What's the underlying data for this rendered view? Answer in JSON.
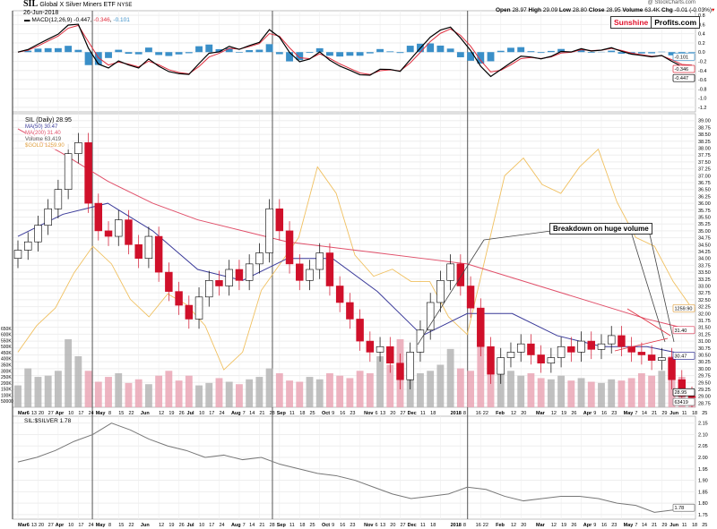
{
  "header": {
    "symbol": "SIL",
    "name": "Global X Silver Miners ETF",
    "exchange": "NYSE",
    "date": "26-Jun-2018",
    "credit": "@ StockCharts.com",
    "open_label": "Open",
    "open": "28.97",
    "high_label": "High",
    "high": "29.09",
    "low_label": "Low",
    "low": "28.80",
    "close_label": "Close",
    "close": "28.95",
    "volume_label": "Volume",
    "volume": "63.4K",
    "chg_label": "Chg",
    "chg": "-0.01 (-0.03%)"
  },
  "logo": {
    "part1": "Sunshine",
    "part2": "Profits.com"
  },
  "annotation": "Breakdown on huge volume",
  "colors": {
    "price": "#000000",
    "ma50": "#3b3b9a",
    "ma200": "#e0506a",
    "gold": "#f0c060",
    "volume": "#e8a0b0",
    "volume_down": "#b0b0b0",
    "macd": "#000000",
    "signal": "#e03040",
    "hist": "#3a8fc8",
    "ratio": "#777777"
  },
  "chart_data": [
    {
      "type": "line",
      "panel": "macd",
      "legend": {
        "macd": "MACD(12,26,9)",
        "macd_value": "-0.447",
        "signal_value": "-0.346",
        "hist_value": "-0.101"
      },
      "ylim": [
        -1.3,
        0.9
      ],
      "yticks": [
        "0.8",
        "0.6",
        "0.4",
        "0.2",
        "0.0",
        "-0.2",
        "-0.4",
        "-0.6",
        "-0.8",
        "-1.0",
        "-1.2"
      ],
      "ytick_values": [
        0.8,
        0.6,
        0.4,
        0.2,
        0,
        -0.2,
        -0.4,
        -0.6,
        -0.8,
        -1.0,
        -1.2
      ]
    },
    {
      "type": "candlestick",
      "panel": "price",
      "legend": {
        "price": "SIL (Daily) 28.95",
        "ma50": "MA(50) 30.47",
        "ma200": "MA(200) 31.40",
        "volume": "Volume 63,419",
        "gold": "$GOLD 1259.90"
      },
      "right_labels": {
        "ma50": "30.47",
        "ma200": "31.40",
        "gold": "1259.90",
        "close": "28.95",
        "volume": "63419"
      },
      "ylim": [
        28.6,
        39.25
      ],
      "yticks": [
        "39.00",
        "38.75",
        "38.50",
        "38.25",
        "38.00",
        "37.75",
        "37.50",
        "37.25",
        "37.00",
        "36.75",
        "36.50",
        "36.25",
        "36.00",
        "35.75",
        "35.50",
        "35.25",
        "35.00",
        "34.75",
        "34.50",
        "34.25",
        "34.00",
        "33.75",
        "33.50",
        "33.25",
        "33.00",
        "32.75",
        "32.50",
        "32.25",
        "32.00",
        "31.75",
        "31.50",
        "31.25",
        "31.00",
        "30.75",
        "30.50",
        "30.25",
        "30.00",
        "29.75",
        "29.50",
        "29.25",
        "29.00",
        "28.75"
      ],
      "vol_ticks": [
        "650K",
        "600K",
        "550K",
        "500K",
        "450K",
        "400K",
        "350K",
        "300K",
        "250K",
        "200K",
        "150K",
        "100K",
        "50000"
      ],
      "vol_tick_values": [
        650000,
        600000,
        550000,
        500000,
        450000,
        400000,
        350000,
        300000,
        250000,
        200000,
        150000,
        100000,
        50000
      ],
      "closes": [
        34.3,
        34.6,
        35.2,
        35.8,
        36.5,
        37.8,
        38.2,
        36.0,
        35.0,
        34.8,
        35.4,
        34.5,
        34.0,
        34.8,
        33.5,
        32.8,
        32.3,
        31.8,
        32.6,
        33.2,
        33.0,
        33.6,
        33.2,
        33.8,
        34.2,
        35.8,
        35.0,
        33.8,
        33.2,
        33.6,
        34.2,
        33.0,
        32.4,
        31.8,
        31.0,
        30.6,
        30.8,
        30.2,
        29.6,
        30.6,
        31.4,
        32.4,
        33.2,
        33.8,
        33.0,
        32.2,
        30.8,
        29.8,
        30.4,
        30.6,
        30.9,
        30.5,
        30.2,
        30.4,
        30.8,
        30.6,
        31.0,
        30.7,
        30.9,
        31.2,
        30.8,
        30.6,
        30.5,
        30.3,
        30.4,
        29.6,
        29.0,
        28.95
      ],
      "volume": [
        180000,
        320000,
        250000,
        260000,
        300000,
        560000,
        420000,
        300000,
        210000,
        250000,
        280000,
        200000,
        230000,
        190000,
        260000,
        300000,
        220000,
        260000,
        180000,
        200000,
        240000,
        210000,
        190000,
        230000,
        250000,
        320000,
        280000,
        220000,
        210000,
        250000,
        230000,
        280000,
        260000,
        240000,
        300000,
        280000,
        420000,
        350000,
        560000,
        380000,
        280000,
        300000,
        350000,
        480000,
        320000,
        300000,
        540000,
        480000,
        320000,
        300000,
        260000,
        280000,
        240000,
        230000,
        260000,
        220000,
        240000,
        210000,
        200000,
        230000,
        220000,
        240000,
        280000,
        260000,
        300000,
        420000,
        250000,
        63419
      ],
      "ma50": [
        34.8,
        35.6,
        36.0,
        35.0,
        33.6,
        33.2,
        34.0,
        34.0,
        32.8,
        31.2,
        32.0,
        32.0,
        31.2,
        30.8,
        30.8,
        30.47
      ],
      "ma200": [
        38.7,
        37.8,
        36.8,
        36.0,
        35.4,
        35.0,
        34.6,
        34.4,
        34.2,
        34.0,
        33.8,
        33.3,
        32.8,
        32.3,
        31.8,
        31.4
      ],
      "gold": [
        1235,
        1250,
        1260,
        1280,
        1295,
        1285,
        1265,
        1255,
        1268,
        1262,
        1250,
        1225,
        1235,
        1270,
        1285,
        1300,
        1340,
        1325,
        1290,
        1278,
        1282,
        1275,
        1275,
        1255,
        1245,
        1290,
        1335,
        1345,
        1330,
        1325,
        1340,
        1350,
        1320,
        1300,
        1295,
        1275,
        1259.9
      ]
    },
    {
      "type": "line",
      "panel": "ratio",
      "legend": "SIL:$SILVER 1.78",
      "last": "1.78",
      "ylim": [
        1.73,
        2.18
      ],
      "yticks": [
        "2.15",
        "2.10",
        "2.05",
        "2.00",
        "1.95",
        "1.90",
        "1.85",
        "1.80",
        "1.75"
      ],
      "ytick_values": [
        2.15,
        2.1,
        2.05,
        2.0,
        1.95,
        1.9,
        1.85,
        1.8,
        1.75
      ],
      "values": [
        1.98,
        2.0,
        2.03,
        2.07,
        2.1,
        2.15,
        2.12,
        2.08,
        2.05,
        2.03,
        2.0,
        2.01,
        1.99,
        2.0,
        1.97,
        1.95,
        1.93,
        1.92,
        1.9,
        1.87,
        1.84,
        1.82,
        1.83,
        1.84,
        1.87,
        1.86,
        1.83,
        1.81,
        1.82,
        1.83,
        1.83,
        1.82,
        1.8,
        1.79,
        1.76,
        1.77,
        1.78
      ]
    }
  ],
  "x_labels": [
    "Mar6",
    "13",
    "20",
    "27",
    "Apr",
    "10",
    "17",
    "24",
    "May",
    "8",
    "15",
    "22",
    "Jun",
    "12",
    "19",
    "26",
    "Jul",
    "10",
    "17",
    "24",
    "Aug",
    "7",
    "14",
    "21",
    "28",
    "Sep",
    "11",
    "18",
    "25",
    "Oct",
    "9",
    "16",
    "23",
    "Nov",
    "6",
    "13",
    "20",
    "27",
    "Dec",
    "11",
    "18",
    "2018",
    "8",
    "16",
    "22",
    "Feb",
    "12",
    "20",
    "Mar",
    "12",
    "19",
    "26",
    "Apr",
    "9",
    "16",
    "23",
    "May",
    "7",
    "14",
    "21",
    "29",
    "Jun",
    "11",
    "18",
    "25"
  ],
  "x_label_weeks": [
    0,
    1,
    2,
    3,
    3.6,
    5,
    6,
    7,
    7.6,
    9,
    10,
    11,
    12.2,
    14,
    15,
    16,
    16.8,
    18,
    19,
    20,
    21.2,
    22,
    23,
    24,
    25,
    25.6,
    27,
    28,
    29,
    30.2,
    31,
    32,
    33,
    34.4,
    35,
    36,
    37,
    38,
    38.6,
    40,
    41,
    43,
    44,
    45.5,
    46,
    47.5,
    49,
    50,
    51.5,
    53,
    54,
    55,
    56.2,
    57,
    58,
    59,
    60.2,
    61,
    62,
    63,
    64,
    64.8,
    66,
    67,
    68
  ]
}
